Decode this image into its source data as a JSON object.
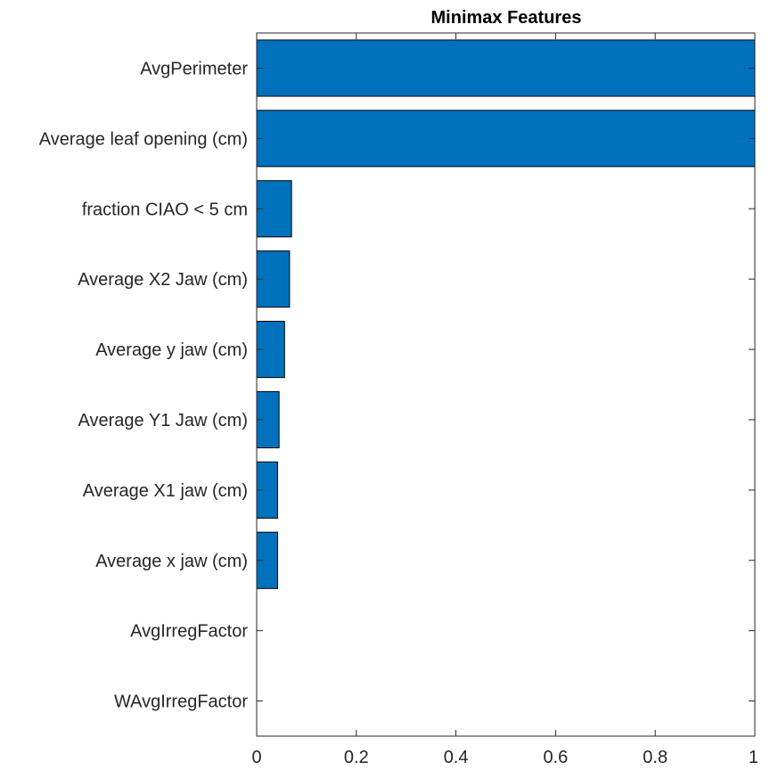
{
  "chart_data": {
    "type": "bar",
    "orientation": "horizontal",
    "title": "Minimax Features",
    "xlabel": "",
    "ylabel": "",
    "categories": [
      "AvgPerimeter",
      "Average leaf opening (cm)",
      "fraction CIAO < 5 cm",
      "Average X2 Jaw (cm)",
      "Average y jaw (cm)",
      "Average Y1 Jaw (cm)",
      "Average X1 jaw (cm)",
      "Average x jaw (cm)",
      "AvgIrregFactor",
      "WAvgIrregFactor"
    ],
    "values": [
      1.0,
      1.0,
      0.07,
      0.066,
      0.056,
      0.045,
      0.042,
      0.042,
      0,
      0
    ],
    "xlim": [
      0,
      1
    ],
    "xticks": [
      "0",
      "0.2",
      "0.4",
      "0.6",
      "0.8",
      "1"
    ],
    "grid": false,
    "legend": "none",
    "bar_color": "#0072BD",
    "axis_color": "#262626"
  }
}
